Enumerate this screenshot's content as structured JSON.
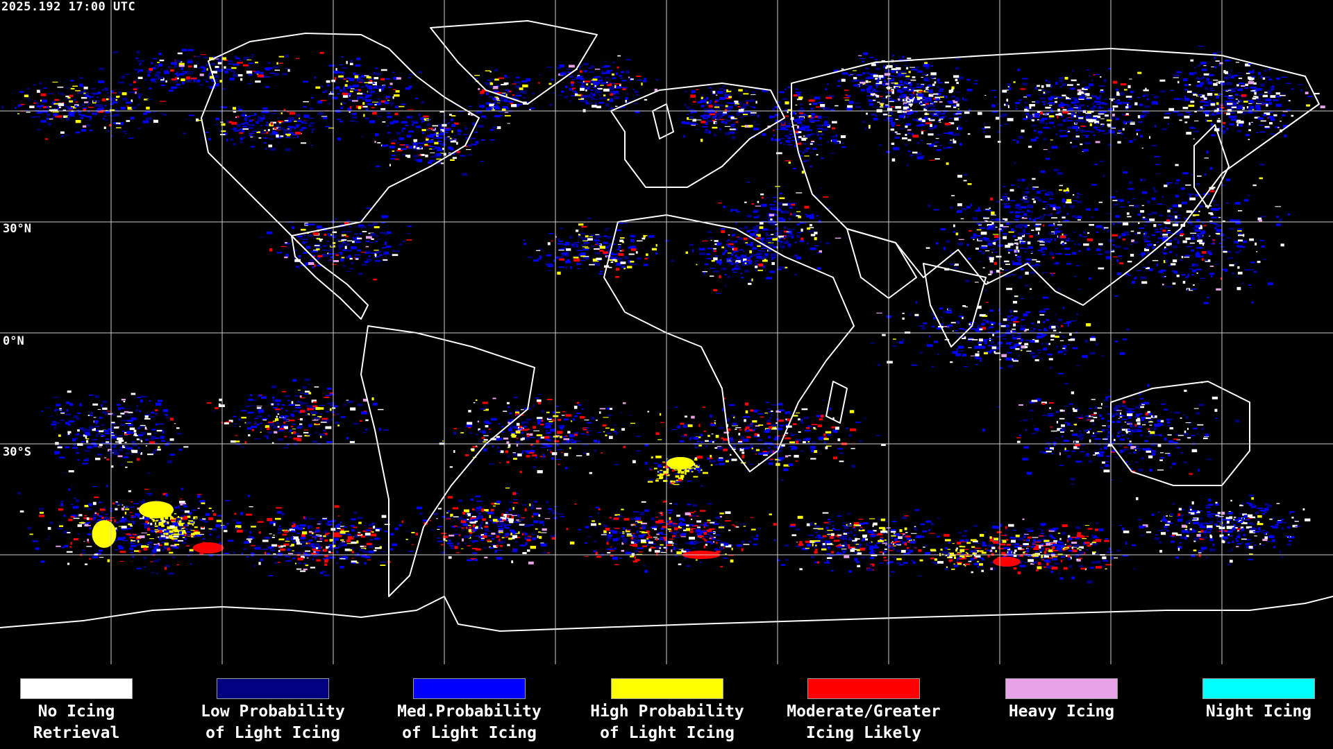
{
  "header": {
    "timestamp": "2025.192 17:00 UTC"
  },
  "map": {
    "gridlines": "on",
    "coastlines": "white",
    "background": "#000000",
    "latitude_labels": [
      "30°N",
      "0°N",
      "30°S"
    ]
  },
  "legend": {
    "items": [
      {
        "label": "No Icing\nRetrieval",
        "color": "#ffffff"
      },
      {
        "label": "Low Probability\nof Light Icing",
        "color": "#000080"
      },
      {
        "label": "Med.Probability\nof Light Icing",
        "color": "#0000ff"
      },
      {
        "label": "High Probability\nof Light Icing",
        "color": "#ffff00"
      },
      {
        "label": "Moderate/Greater\nIcing Likely",
        "color": "#ff0000"
      },
      {
        "label": "Heavy Icing",
        "color": "#e8a2e8"
      },
      {
        "label": "Night Icing",
        "color": "#00ffff"
      }
    ]
  }
}
